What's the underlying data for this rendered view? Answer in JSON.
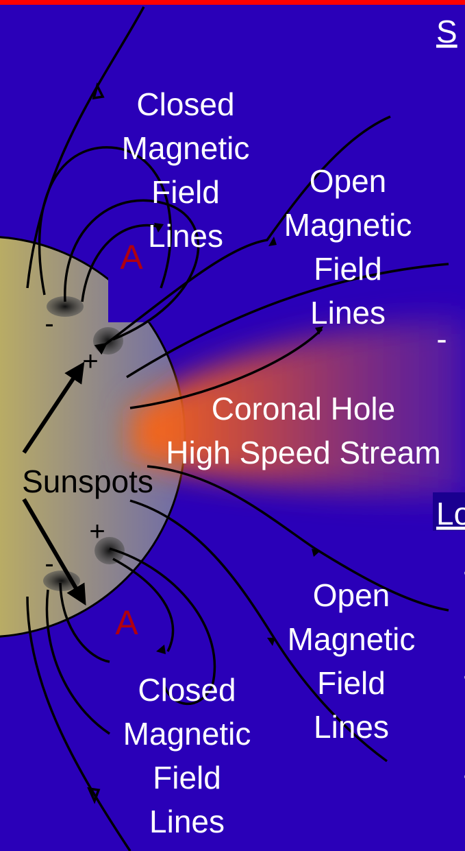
{
  "labels": {
    "closed_top": [
      "Closed",
      "Magnetic",
      "Field",
      "Lines"
    ],
    "open_top": [
      "Open",
      "Magnetic",
      "Field",
      "Lines"
    ],
    "coronal_hole": [
      "Coronal Hole",
      "High Speed Stream"
    ],
    "sunspots": "Sunspots",
    "open_bottom": [
      "Open",
      "Magnetic",
      "Field",
      "Lines"
    ],
    "closed_bottom": [
      "Closed",
      "Magnetic",
      "Field",
      "Lines"
    ]
  },
  "polarity": [
    "-",
    "+",
    "+",
    "-"
  ],
  "markers": [
    "A",
    "A"
  ],
  "right_column": {
    "heading_1": "S",
    "heading_2": "Lo",
    "bullets": [
      "-",
      "-",
      "-",
      "-"
    ]
  }
}
